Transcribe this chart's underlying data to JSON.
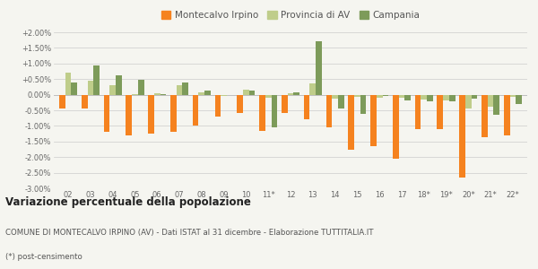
{
  "categories": [
    "02",
    "03",
    "04",
    "05",
    "06",
    "07",
    "08",
    "09",
    "10",
    "11*",
    "12",
    "13",
    "14",
    "15",
    "16",
    "17",
    "18*",
    "19*",
    "20*",
    "21*",
    "22*"
  ],
  "montecalvo": [
    -0.45,
    -0.45,
    -1.2,
    -1.3,
    -1.25,
    -1.2,
    -1.0,
    -0.7,
    -0.6,
    -1.15,
    -0.6,
    -0.8,
    -1.05,
    -1.75,
    -1.65,
    -2.05,
    -1.1,
    -1.1,
    -2.65,
    -1.35,
    -1.3
  ],
  "provincia": [
    0.7,
    0.45,
    0.3,
    0.02,
    0.05,
    0.3,
    0.08,
    -0.03,
    0.15,
    -0.1,
    0.05,
    0.35,
    -0.12,
    -0.08,
    -0.1,
    -0.1,
    -0.15,
    -0.18,
    -0.45,
    -0.38,
    -0.08
  ],
  "campania": [
    0.4,
    0.93,
    0.62,
    0.49,
    0.03,
    0.38,
    0.13,
    0.0,
    0.12,
    -1.06,
    0.08,
    1.7,
    -0.45,
    -0.62,
    -0.05,
    -0.18,
    -0.2,
    -0.22,
    -0.12,
    -0.65,
    -0.3
  ],
  "color_montecalvo": "#F5821F",
  "color_provincia": "#BFCD8A",
  "color_campania": "#7D9B5A",
  "title": "Variazione percentuale della popolazione",
  "subtitle": "COMUNE DI MONTECALVO IRPINO (AV) - Dati ISTAT al 31 dicembre - Elaborazione TUTTITALIA.IT",
  "footnote": "(*) post-censimento",
  "bg_color": "#F5F5F0",
  "ylim": [
    -3.0,
    2.0
  ],
  "yticks": [
    -3.0,
    -2.5,
    -2.0,
    -1.5,
    -1.0,
    -0.5,
    0.0,
    0.5,
    1.0,
    1.5,
    2.0
  ]
}
